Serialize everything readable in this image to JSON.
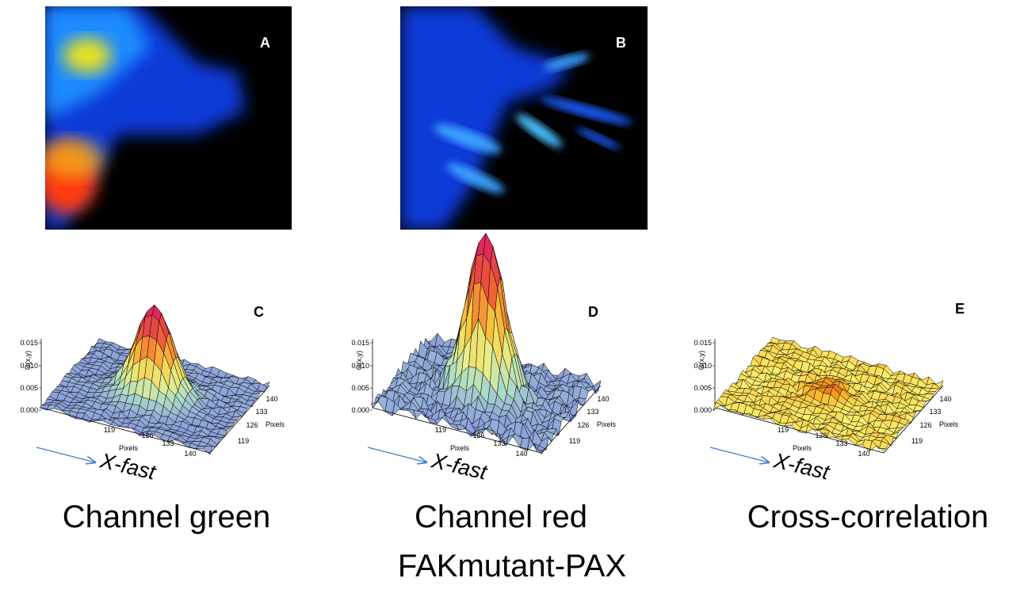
{
  "panels": [
    {
      "label": "A"
    },
    {
      "label": "B"
    }
  ],
  "plots": [
    {
      "label": "C",
      "z_axis_label": "G(x,y)",
      "z_ticks": [
        "0.015",
        "0.010",
        "0.005",
        "0.000"
      ],
      "x_ticks": [
        "119",
        "126",
        "133",
        "140"
      ],
      "x_axis_label": "Pixels",
      "y_ticks": [
        "119",
        "126",
        "133",
        "140"
      ],
      "y_axis_label": "Pixels",
      "direction_label": "X-fast",
      "caption": "Channel green"
    },
    {
      "label": "D",
      "z_axis_label": "G(x,y)",
      "z_ticks": [
        "0.015",
        "0.010",
        "0.005",
        "0.000"
      ],
      "x_ticks": [
        "119",
        "126",
        "133",
        "140"
      ],
      "x_axis_label": "Pixels",
      "y_ticks": [
        "119",
        "126",
        "133",
        "140"
      ],
      "y_axis_label": "Pixels",
      "direction_label": "X-fast",
      "caption": "Channel red"
    },
    {
      "label": "E",
      "z_axis_label": "G(x,y)",
      "z_ticks": [
        "0.015",
        "0.010",
        "0.005",
        "0.000"
      ],
      "x_ticks": [
        "119",
        "126",
        "133",
        "140"
      ],
      "x_axis_label": "Pixels",
      "y_ticks": [
        "119",
        "126",
        "133",
        "140"
      ],
      "y_axis_label": "Pixels",
      "direction_label": "X-fast",
      "caption": "Cross-correlation"
    }
  ],
  "title": "FAKmutant-PAX"
}
